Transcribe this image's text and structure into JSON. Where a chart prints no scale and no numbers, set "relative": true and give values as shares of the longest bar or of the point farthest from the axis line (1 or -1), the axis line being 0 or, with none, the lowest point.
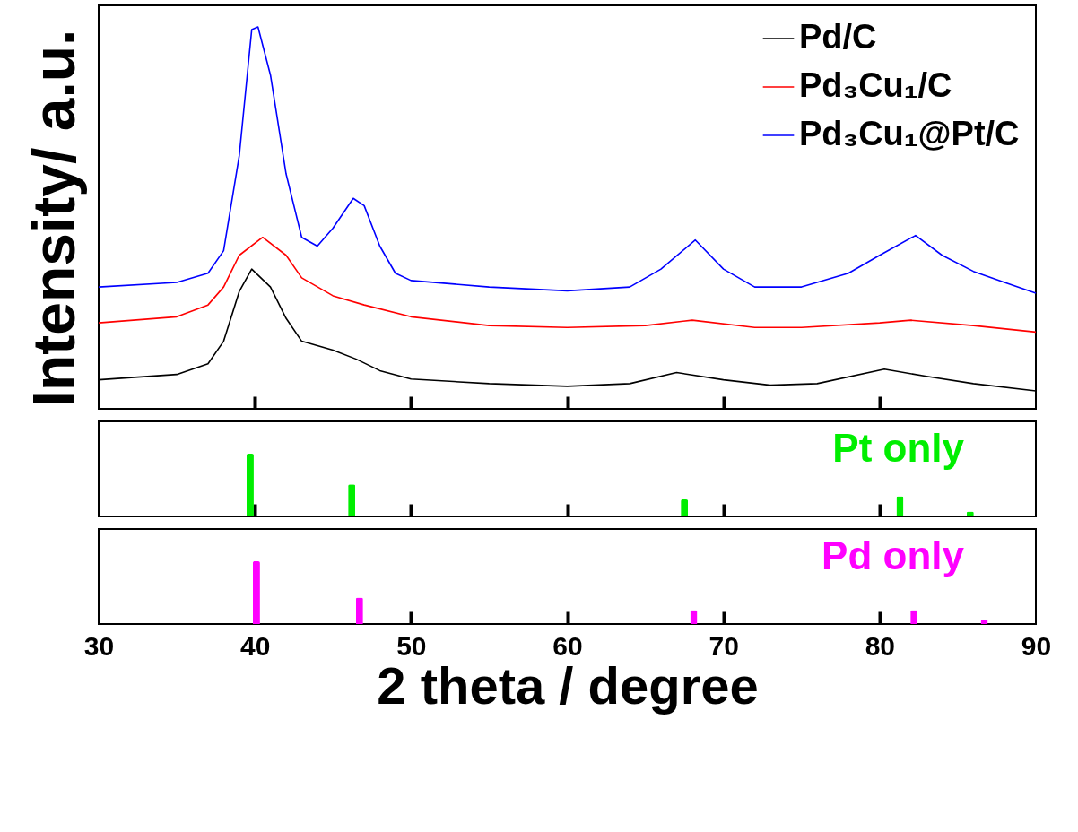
{
  "chart_data": [
    {
      "type": "line",
      "ylabel": "Intensity/ a.u.",
      "relative": true,
      "xlim": [
        30,
        90
      ],
      "xticks": [
        30,
        40,
        50,
        60,
        70,
        80,
        90
      ],
      "tick_labels": false,
      "grid": false,
      "legend": "top right",
      "marker": "none",
      "line_style": "solid",
      "series": [
        {
          "name": "Pd/C",
          "color": "#000000",
          "x": [
            30,
            35,
            37,
            38,
            39,
            39.8,
            41,
            42,
            43,
            45,
            46.5,
            48,
            50,
            55,
            60,
            64,
            67,
            70,
            73,
            76,
            80.3,
            83,
            86,
            90
          ],
          "values": [
            0.076,
            0.09,
            0.118,
            0.177,
            0.307,
            0.366,
            0.319,
            0.237,
            0.177,
            0.154,
            0.13,
            0.1,
            0.078,
            0.066,
            0.059,
            0.066,
            0.095,
            0.076,
            0.062,
            0.066,
            0.104,
            0.085,
            0.066,
            0.047
          ]
        },
        {
          "name": "Pd₃Cu₁/C",
          "color": "#ff0000",
          "x": [
            30,
            35,
            37,
            38,
            39,
            40.5,
            42,
            43,
            45,
            47,
            50,
            55,
            60,
            65,
            68,
            72,
            75,
            80,
            82,
            86,
            90
          ],
          "values": [
            0.225,
            0.241,
            0.272,
            0.319,
            0.402,
            0.449,
            0.402,
            0.343,
            0.296,
            0.272,
            0.241,
            0.218,
            0.213,
            0.218,
            0.232,
            0.213,
            0.213,
            0.225,
            0.232,
            0.218,
            0.201
          ]
        },
        {
          "name": "Pd₃Cu₁@Pt/C",
          "color": "#0000ff",
          "x": [
            30,
            35,
            37,
            38,
            39,
            39.8,
            40.2,
            41,
            42,
            43,
            44,
            45,
            46.3,
            47,
            48,
            49,
            50,
            55,
            60,
            64,
            66,
            68.2,
            70,
            72,
            75,
            78,
            80,
            82.3,
            84,
            86,
            88,
            90
          ],
          "values": [
            0.319,
            0.331,
            0.355,
            0.414,
            0.662,
            0.993,
            1,
            0.874,
            0.615,
            0.449,
            0.426,
            0.473,
            0.551,
            0.532,
            0.426,
            0.355,
            0.336,
            0.319,
            0.309,
            0.319,
            0.366,
            0.442,
            0.366,
            0.319,
            0.319,
            0.355,
            0.402,
            0.454,
            0.402,
            0.36,
            0.331,
            0.303
          ]
        }
      ]
    },
    {
      "type": "bar",
      "relative": true,
      "xlim": [
        30,
        90
      ],
      "xticks": [
        30,
        40,
        50,
        60,
        70,
        80,
        90
      ],
      "tick_labels": false,
      "grid": false,
      "annotations": [
        "Pt only"
      ],
      "x": [
        39.7,
        46.2,
        67.5,
        81.3,
        85.8
      ],
      "values": [
        1,
        0.51,
        0.27,
        0.32,
        0.08
      ],
      "color": "#00ee00"
    },
    {
      "type": "bar",
      "relative": true,
      "xlabel": "2 theta / degree",
      "xlim": [
        30,
        90
      ],
      "xticks": [
        30,
        40,
        50,
        60,
        70,
        80,
        90
      ],
      "tick_labels": "x",
      "grid": false,
      "annotations": [
        "Pd only"
      ],
      "x": [
        40.1,
        46.7,
        68.1,
        82.2,
        86.7
      ],
      "values": [
        1,
        0.42,
        0.22,
        0.22,
        0.07
      ],
      "color": "#ff00ff"
    }
  ]
}
